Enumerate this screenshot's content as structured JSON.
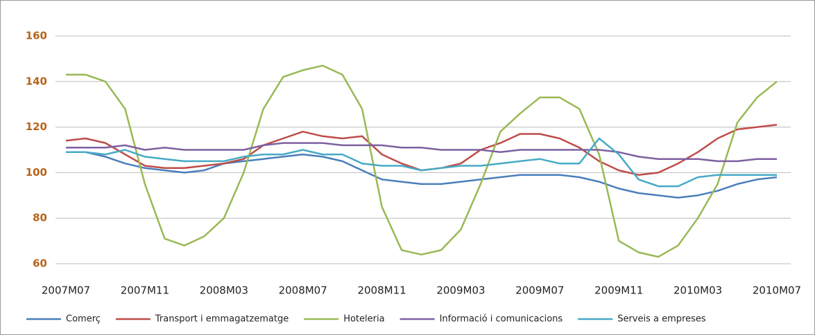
{
  "chart_data": {
    "type": "line",
    "categories": [
      "2007M07",
      null,
      null,
      null,
      "2007M11",
      null,
      null,
      null,
      "2008M03",
      null,
      null,
      null,
      "2008M07",
      null,
      null,
      null,
      "2008M11",
      null,
      null,
      null,
      "2009M03",
      null,
      null,
      null,
      "2009M07",
      null,
      null,
      null,
      "2009M11",
      null,
      null,
      null,
      "2010M03",
      null,
      null,
      null,
      "2010M07"
    ],
    "series": [
      {
        "name": "Comerç",
        "color": "#4a7ebb",
        "values": [
          109,
          109,
          107,
          104,
          102,
          101,
          100,
          101,
          104,
          105,
          106,
          107,
          108,
          107,
          105,
          101,
          97,
          96,
          95,
          95,
          96,
          97,
          98,
          99,
          99,
          99,
          98,
          96,
          93,
          91,
          90,
          89,
          90,
          92,
          95,
          97,
          98
        ]
      },
      {
        "name": "Transport i emmagatzematge",
        "color": "#be4b48",
        "values": [
          114,
          115,
          113,
          108,
          103,
          102,
          102,
          103,
          104,
          106,
          112,
          115,
          118,
          116,
          115,
          116,
          108,
          104,
          101,
          102,
          104,
          110,
          113,
          117,
          117,
          115,
          111,
          105,
          101,
          99,
          100,
          104,
          109,
          115,
          119,
          120,
          121
        ]
      },
      {
        "name": "Hoteleria",
        "color": "#98b954",
        "values": [
          143,
          143,
          140,
          128,
          95,
          71,
          68,
          72,
          80,
          100,
          128,
          142,
          145,
          147,
          143,
          128,
          85,
          66,
          64,
          66,
          75,
          95,
          118,
          126,
          133,
          133,
          128,
          108,
          70,
          65,
          63,
          68,
          80,
          95,
          122,
          133,
          140
        ]
      },
      {
        "name": "Informació i comunicacions",
        "color": "#7d60a0",
        "values": [
          111,
          111,
          111,
          112,
          110,
          111,
          110,
          110,
          110,
          110,
          112,
          113,
          113,
          113,
          112,
          112,
          112,
          111,
          111,
          110,
          110,
          110,
          109,
          110,
          110,
          110,
          110,
          110,
          109,
          107,
          106,
          106,
          106,
          105,
          105,
          106,
          106
        ]
      },
      {
        "name": "Serveis a empreses",
        "color": "#46aac5",
        "values": [
          109,
          109,
          108,
          110,
          107,
          106,
          105,
          105,
          105,
          107,
          108,
          108,
          110,
          108,
          108,
          104,
          103,
          103,
          101,
          102,
          103,
          103,
          104,
          105,
          106,
          104,
          104,
          115,
          108,
          97,
          94,
          94,
          98,
          99,
          99,
          99,
          99
        ]
      }
    ],
    "ylim": [
      60,
      160
    ],
    "yticks": [
      60,
      80,
      100,
      120,
      140,
      160
    ],
    "grid": true,
    "legend": "bottom"
  }
}
